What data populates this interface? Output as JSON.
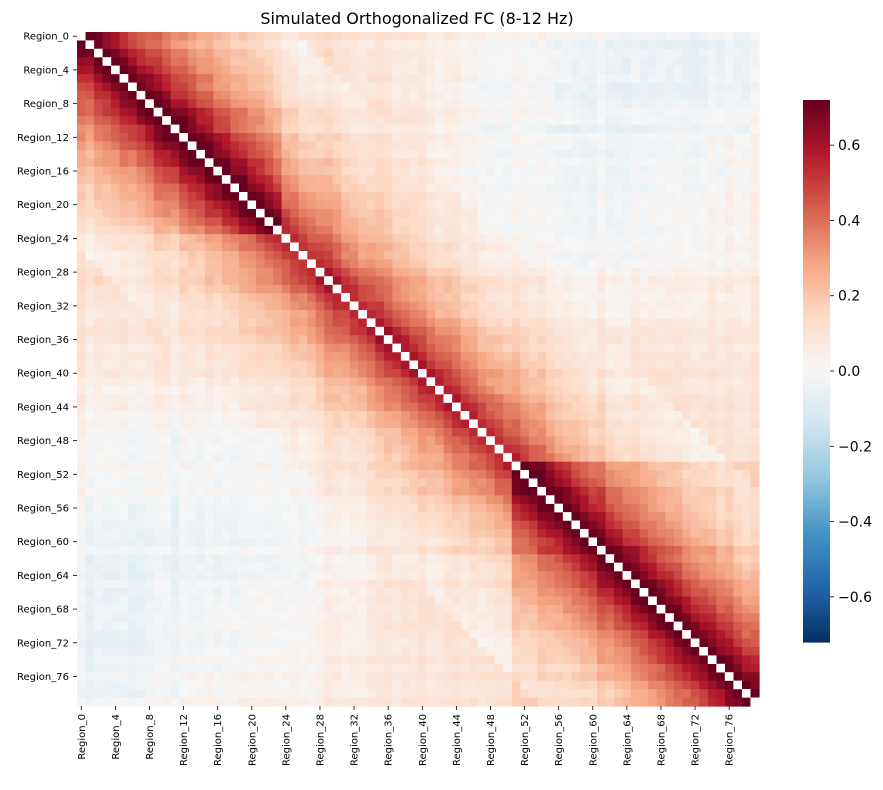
{
  "chart_data": {
    "type": "heatmap",
    "title": "Simulated Orthogonalized FC (8-12 Hz)",
    "n_regions": 80,
    "row_tick_labels": [
      "Region_0",
      "Region_4",
      "Region_8",
      "Region_12",
      "Region_16",
      "Region_20",
      "Region_24",
      "Region_28",
      "Region_32",
      "Region_36",
      "Region_40",
      "Region_44",
      "Region_48",
      "Region_52",
      "Region_56",
      "Region_60",
      "Region_64",
      "Region_68",
      "Region_72",
      "Region_76"
    ],
    "col_tick_labels": [
      "Region_0",
      "Region_4",
      "Region_8",
      "Region_12",
      "Region_16",
      "Region_20",
      "Region_24",
      "Region_28",
      "Region_32",
      "Region_36",
      "Region_40",
      "Region_44",
      "Region_48",
      "Region_52",
      "Region_56",
      "Region_60",
      "Region_64",
      "Region_68",
      "Region_72",
      "Region_76"
    ],
    "tick_step": 4,
    "diagonal": "masked",
    "colormap": "RdBu_r",
    "vmin": -0.72,
    "vmax": 0.72,
    "colorbar_ticks": [
      0.6,
      0.4,
      0.2,
      0.0,
      -0.2,
      -0.4,
      -0.6
    ],
    "colorbar_tick_labels": [
      "0.6",
      "0.4",
      "0.2",
      "0.0",
      "−0.2",
      "−0.4",
      "−0.6"
    ],
    "colormap_stops": [
      "#053061",
      "#2166ac",
      "#4393c3",
      "#92c5de",
      "#d1e5f0",
      "#f7f7f7",
      "#fddbc7",
      "#f4a582",
      "#d6604d",
      "#b2182b",
      "#67001f"
    ],
    "grid": false
  }
}
